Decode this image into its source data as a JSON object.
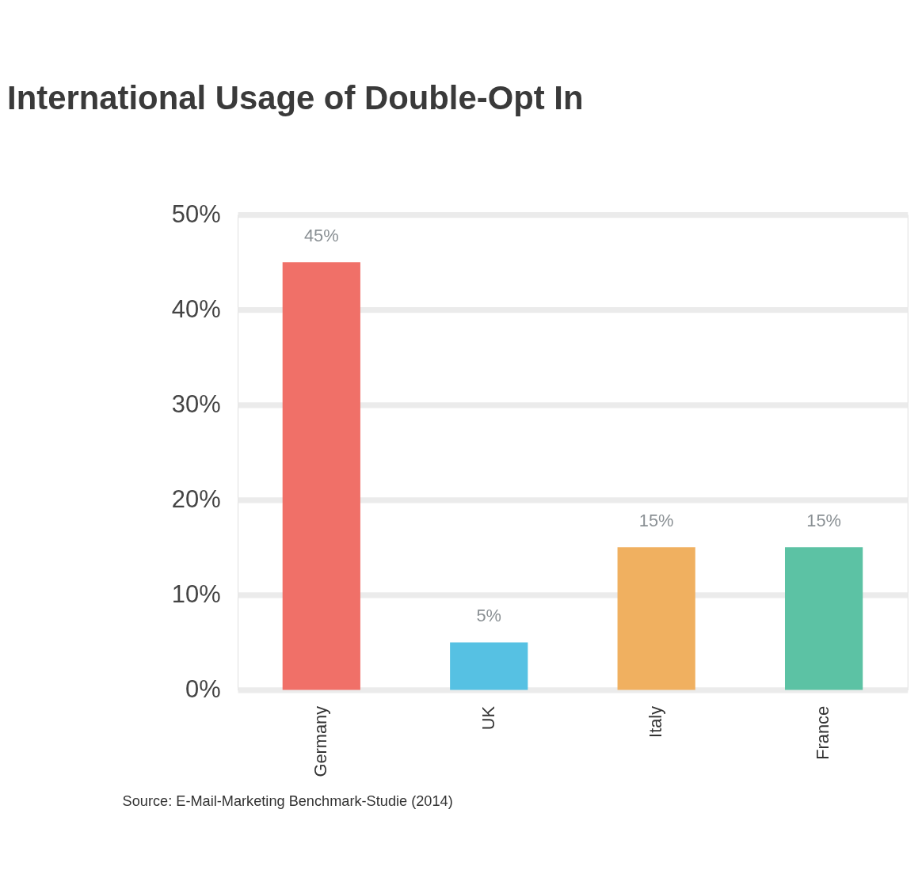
{
  "chart_data": {
    "type": "bar",
    "title": "International Usage of Double-Opt In",
    "categories": [
      "Germany",
      "UK",
      "Italy",
      "France"
    ],
    "values": [
      45,
      5,
      15,
      15
    ],
    "colors": [
      "#f07068",
      "#56c1e3",
      "#f0b060",
      "#5cc2a4"
    ],
    "value_labels": [
      "45%",
      "5%",
      "15%",
      "15%"
    ],
    "ylim": [
      0,
      50
    ],
    "yticks": [
      {
        "value": 0,
        "label": "0%"
      },
      {
        "value": 10,
        "label": "10%"
      },
      {
        "value": 20,
        "label": "20%"
      },
      {
        "value": 30,
        "label": "30%"
      },
      {
        "value": 40,
        "label": "40%"
      },
      {
        "value": 50,
        "label": "50%"
      }
    ],
    "grid": "y",
    "annotations": [
      "Source: E-Mail-Marketing Benchmark-Studie (2014)"
    ]
  }
}
